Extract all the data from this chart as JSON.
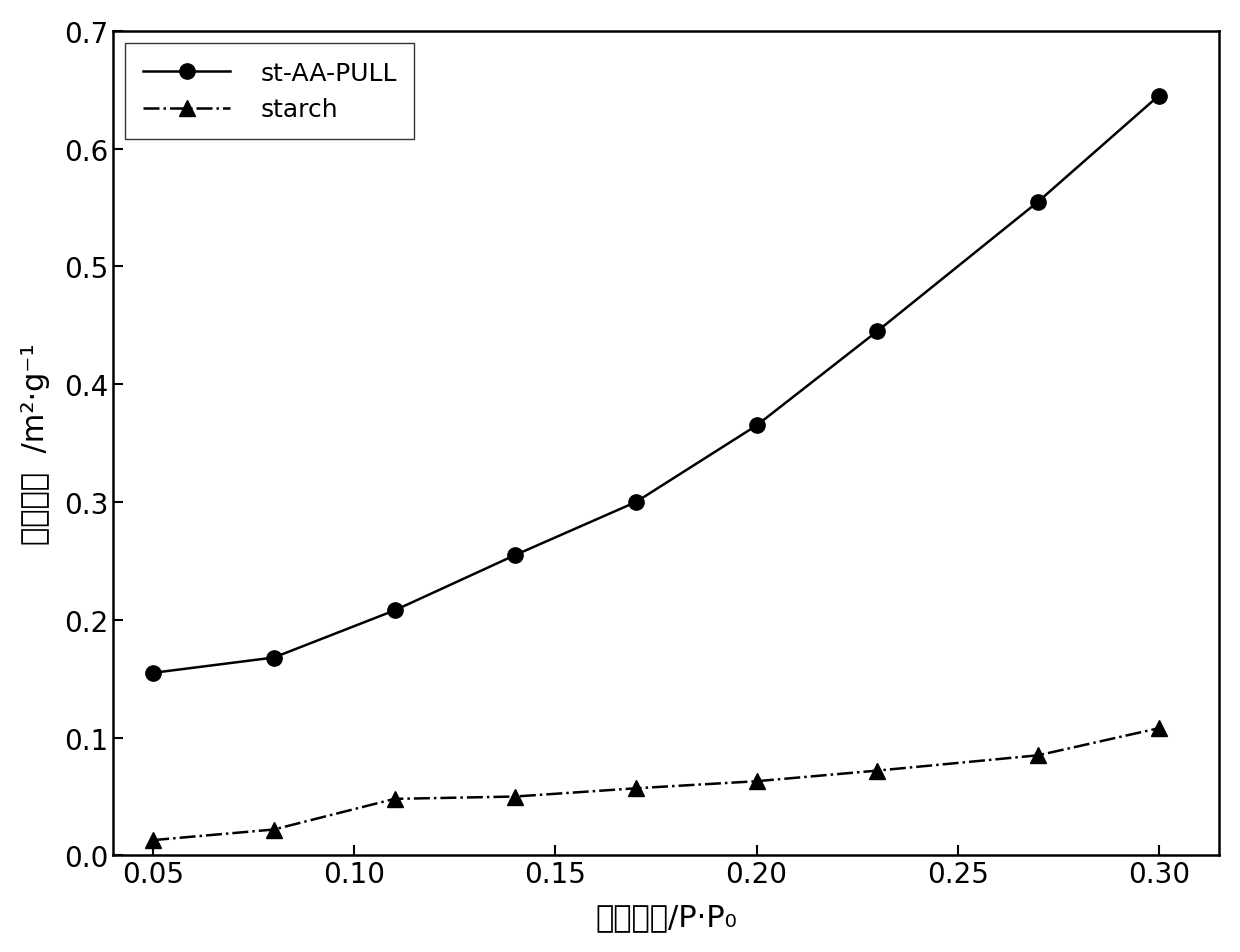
{
  "series1_label": "st-AA-PULL",
  "series1_x": [
    0.05,
    0.08,
    0.11,
    0.14,
    0.17,
    0.2,
    0.23,
    0.27,
    0.3
  ],
  "series1_y": [
    0.155,
    0.168,
    0.208,
    0.255,
    0.3,
    0.365,
    0.445,
    0.555,
    0.645
  ],
  "series2_label": "starch",
  "series2_x": [
    0.05,
    0.08,
    0.11,
    0.14,
    0.17,
    0.2,
    0.23,
    0.27,
    0.3
  ],
  "series2_y": [
    0.013,
    0.022,
    0.048,
    0.05,
    0.057,
    0.063,
    0.072,
    0.085,
    0.108
  ],
  "color": "#000000",
  "xlabel_ascii": "/P·P₀",
  "xlabel_chinese": "相对压力",
  "ylabel_ascii": "/m²·g⁻¹",
  "ylabel_chinese": "比表面积",
  "xlim": [
    0.04,
    0.315
  ],
  "ylim": [
    0.0,
    0.7
  ],
  "xticks": [
    0.05,
    0.1,
    0.15,
    0.2,
    0.25,
    0.3
  ],
  "yticks": [
    0.0,
    0.1,
    0.2,
    0.3,
    0.4,
    0.5,
    0.6,
    0.7
  ],
  "label_fontsize": 22,
  "tick_fontsize": 20,
  "legend_fontsize": 18,
  "marker_size": 11,
  "line_width": 1.8
}
